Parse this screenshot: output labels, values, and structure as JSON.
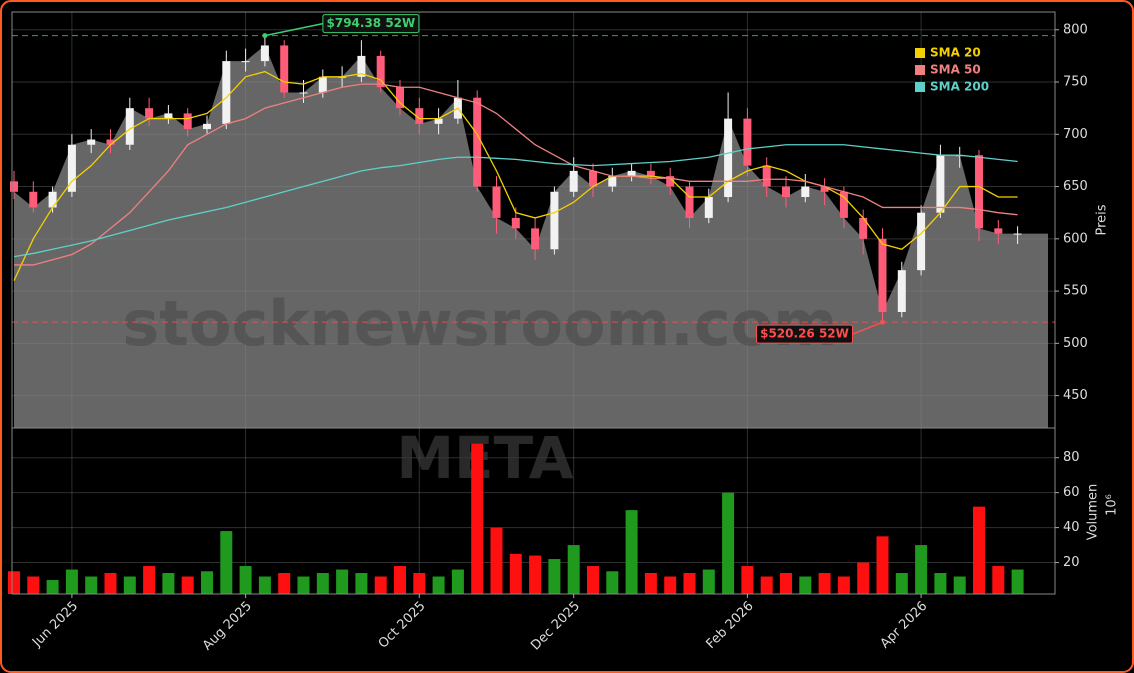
{
  "chart_data": [
    {
      "type": "candlestick",
      "watermark": "stocknewsroom.com",
      "ticker": "META",
      "ylabel": "Preis",
      "ylim": [
        419,
        817
      ],
      "yticks": [
        450,
        500,
        550,
        600,
        650,
        700,
        750,
        800
      ],
      "grid": true,
      "up_color": "#f2f2f2",
      "down_color": "#ff5c7a",
      "area_color": "#666666",
      "legend": "top-right",
      "categories": [
        null,
        null,
        null,
        "Jun 2025",
        null,
        null,
        null,
        null,
        null,
        null,
        null,
        null,
        "Aug 2025",
        null,
        null,
        null,
        null,
        null,
        null,
        null,
        null,
        "Oct 2025",
        null,
        null,
        null,
        null,
        null,
        null,
        null,
        "Dec 2025",
        null,
        null,
        null,
        null,
        null,
        null,
        null,
        null,
        "Feb 2026",
        null,
        null,
        null,
        null,
        null,
        null,
        null,
        null,
        "Apr 2026",
        null,
        null,
        null,
        null,
        null
      ],
      "open": [
        655,
        645,
        630,
        645,
        690,
        695,
        690,
        725,
        715,
        720,
        705,
        710,
        770,
        770,
        785,
        740,
        740,
        755,
        755,
        775,
        745,
        725,
        710,
        715,
        735,
        650,
        620,
        610,
        590,
        645,
        665,
        650,
        660,
        665,
        660,
        650,
        620,
        640,
        715,
        670,
        650,
        640,
        650,
        645,
        620,
        600,
        530,
        570,
        625,
        680,
        680,
        610,
        605
      ],
      "high": [
        665,
        655,
        650,
        700,
        705,
        705,
        735,
        735,
        728,
        725,
        718,
        780,
        782,
        794.38,
        790,
        752,
        762,
        765,
        790,
        780,
        752,
        735,
        725,
        752,
        742,
        660,
        630,
        620,
        650,
        678,
        672,
        668,
        672,
        672,
        668,
        655,
        648,
        740,
        725,
        678,
        660,
        662,
        658,
        650,
        628,
        610,
        578,
        632,
        690,
        688,
        685,
        618,
        612
      ],
      "low": [
        638,
        625,
        625,
        640,
        682,
        682,
        685,
        708,
        710,
        698,
        700,
        705,
        760,
        765,
        735,
        730,
        735,
        745,
        750,
        740,
        718,
        700,
        700,
        710,
        645,
        605,
        600,
        580,
        585,
        640,
        640,
        645,
        655,
        652,
        642,
        610,
        615,
        635,
        660,
        640,
        630,
        635,
        632,
        610,
        585,
        520.26,
        525,
        565,
        620,
        668,
        598,
        595,
        595
      ],
      "close": [
        645,
        630,
        645,
        690,
        695,
        690,
        725,
        715,
        720,
        705,
        710,
        770,
        770,
        785,
        740,
        740,
        755,
        755,
        775,
        745,
        725,
        710,
        715,
        735,
        650,
        620,
        610,
        590,
        645,
        665,
        650,
        660,
        665,
        660,
        650,
        620,
        640,
        715,
        670,
        650,
        640,
        650,
        645,
        620,
        600,
        530,
        570,
        625,
        680,
        680,
        610,
        605,
        605
      ],
      "series": [
        {
          "name": "SMA 20",
          "color": "#f5d000",
          "values": [
            560,
            600,
            630,
            655,
            670,
            690,
            705,
            715,
            715,
            715,
            720,
            735,
            755,
            760,
            750,
            748,
            755,
            755,
            758,
            752,
            730,
            715,
            715,
            725,
            700,
            665,
            625,
            620,
            625,
            635,
            650,
            660,
            660,
            660,
            658,
            640,
            640,
            655,
            665,
            670,
            665,
            655,
            650,
            640,
            620,
            595,
            590,
            605,
            625,
            650,
            650,
            640,
            640
          ]
        },
        {
          "name": "SMA 50",
          "color": "#f08080",
          "values": [
            575,
            575,
            580,
            585,
            595,
            610,
            625,
            645,
            665,
            690,
            700,
            710,
            715,
            725,
            730,
            735,
            740,
            745,
            748,
            748,
            745,
            745,
            740,
            735,
            730,
            720,
            705,
            690,
            680,
            670,
            665,
            660,
            660,
            658,
            658,
            655,
            655,
            655,
            655,
            657,
            657,
            655,
            650,
            645,
            640,
            630,
            630,
            630,
            630,
            630,
            628,
            625,
            623
          ]
        },
        {
          "name": "SMA 200",
          "color": "#5fd0c8",
          "values": [
            583,
            586,
            590,
            594,
            598,
            603,
            608,
            613,
            618,
            622,
            626,
            630,
            635,
            640,
            645,
            650,
            655,
            660,
            665,
            668,
            670,
            673,
            676,
            678,
            678,
            677,
            676,
            674,
            672,
            671,
            670,
            671,
            672,
            673,
            674,
            676,
            678,
            682,
            686,
            688,
            690,
            690,
            690,
            690,
            688,
            686,
            684,
            682,
            680,
            680,
            678,
            676,
            674
          ]
        }
      ],
      "annotations": [
        {
          "text": "$794.38 52W",
          "value": 794.38,
          "color": "#3ccf6e"
        },
        {
          "text": "$520.26 52W",
          "value": 520.26,
          "color": "#ff4d4d"
        }
      ]
    },
    {
      "type": "bar",
      "ylabel": "Volumen",
      "unit": "10⁶",
      "ylim": [
        2,
        97
      ],
      "yticks": [
        20,
        40,
        60,
        80
      ],
      "grid": true,
      "up_color": "#1f9a1f",
      "down_color": "#ff1010",
      "values": [
        15,
        12,
        10,
        16,
        12,
        14,
        12,
        18,
        14,
        12,
        15,
        38,
        18,
        12,
        14,
        12,
        14,
        16,
        14,
        12,
        18,
        14,
        12,
        16,
        88,
        40,
        25,
        24,
        22,
        30,
        18,
        15,
        50,
        14,
        12,
        14,
        16,
        60,
        18,
        12,
        14,
        12,
        14,
        12,
        20,
        35,
        14,
        30,
        14,
        12,
        52,
        18,
        16
      ]
    }
  ]
}
